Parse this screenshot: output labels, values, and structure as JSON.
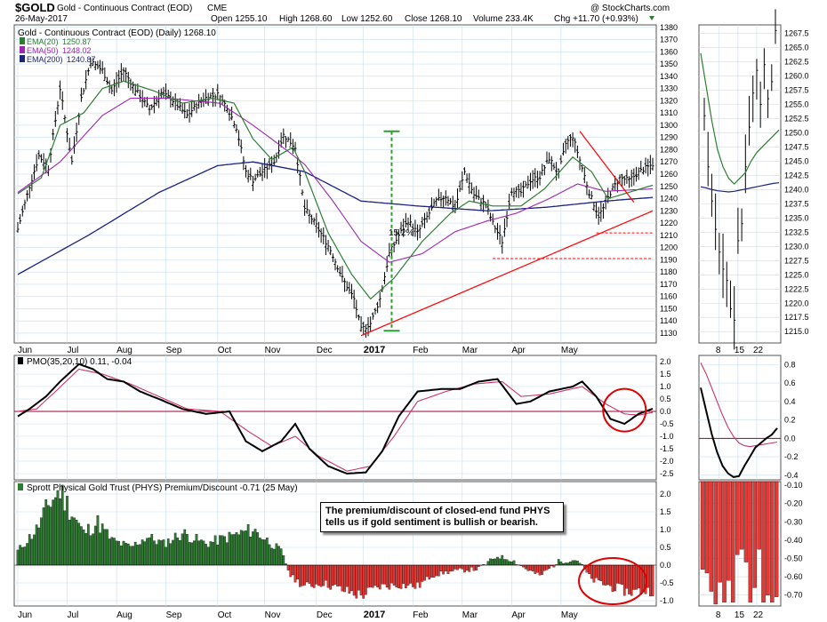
{
  "header": {
    "symbol": "$GOLD",
    "name": "Gold - Continuous Contract (EOD)",
    "exchange": "CME",
    "date": "26-May-2017",
    "open": "Open 1255.10",
    "high": "High 1268.60",
    "low": "Low 1252.60",
    "close": "Close 1268.10",
    "volume": "Volume 233.4K",
    "chg": "Chg +11.70 (+0.93%)",
    "credit": "@ StockCharts.com"
  },
  "colors": {
    "price": "#000000",
    "ema20": "#2e7d32",
    "ema50": "#9c27b0",
    "ema200": "#1a237e",
    "trend": "#ff0000",
    "pmo": "#000000",
    "pmo_signal": "#cc3366",
    "premium_pos": "#2e7d32",
    "premium_neg": "#e53935",
    "grid": "#c8dcf0"
  },
  "annotation": {
    "line1": "The premium/discount of closed-end fund PHYS",
    "line2": "tells us if gold sentiment is bullish or bearish.",
    "rally_pct": "15.2%"
  },
  "chart_data": [
    {
      "type": "line",
      "panel": "price-daily",
      "title": "Gold - Continuous Contract (EOD) (Daily) 1268.10",
      "legend": [
        {
          "label": "Gold - Continuous Contract (EOD) (Daily) 1268.10"
        },
        {
          "label": "EMA(20)",
          "value": "1250.87"
        },
        {
          "label": "EMA(50)",
          "value": "1248.02"
        },
        {
          "label": "EMA(200)",
          "value": "1240.87"
        }
      ],
      "ylim": [
        1122,
        1382
      ],
      "yticks": [
        1130,
        1140,
        1150,
        1160,
        1170,
        1180,
        1190,
        1200,
        1210,
        1220,
        1230,
        1240,
        1250,
        1260,
        1270,
        1280,
        1290,
        1300,
        1310,
        1320,
        1330,
        1340,
        1350,
        1360,
        1370,
        1380
      ],
      "xticks": [
        "Jun",
        "Jul",
        "Aug",
        "Sep",
        "Oct",
        "Nov",
        "Dec",
        "2017",
        "Feb",
        "Mar",
        "Apr",
        "May"
      ],
      "x_tick_pos": [
        0,
        21,
        42,
        63,
        85,
        105,
        127,
        147,
        168,
        189,
        210,
        231
      ],
      "n": 252,
      "anchors": [
        [
          0,
          1215
        ],
        [
          5,
          1250
        ],
        [
          9,
          1275
        ],
        [
          13,
          1265
        ],
        [
          18,
          1330
        ],
        [
          23,
          1270
        ],
        [
          27,
          1322
        ],
        [
          31,
          1352
        ],
        [
          36,
          1345
        ],
        [
          40,
          1328
        ],
        [
          45,
          1345
        ],
        [
          49,
          1332
        ],
        [
          56,
          1313
        ],
        [
          61,
          1326
        ],
        [
          65,
          1322
        ],
        [
          72,
          1308
        ],
        [
          79,
          1322
        ],
        [
          85,
          1325
        ],
        [
          89,
          1315
        ],
        [
          93,
          1298
        ],
        [
          97,
          1262
        ],
        [
          100,
          1255
        ],
        [
          104,
          1262
        ],
        [
          109,
          1270
        ],
        [
          113,
          1292
        ],
        [
          118,
          1282
        ],
        [
          122,
          1232
        ],
        [
          127,
          1218
        ],
        [
          133,
          1198
        ],
        [
          138,
          1175
        ],
        [
          143,
          1158
        ],
        [
          146,
          1133
        ],
        [
          150,
          1138
        ],
        [
          154,
          1158
        ],
        [
          158,
          1195
        ],
        [
          162,
          1210
        ],
        [
          166,
          1222
        ],
        [
          170,
          1212
        ],
        [
          174,
          1225
        ],
        [
          178,
          1238
        ],
        [
          182,
          1242
        ],
        [
          186,
          1232
        ],
        [
          190,
          1262
        ],
        [
          194,
          1243
        ],
        [
          199,
          1235
        ],
        [
          202,
          1220
        ],
        [
          206,
          1205
        ],
        [
          210,
          1247
        ],
        [
          214,
          1245
        ],
        [
          218,
          1255
        ],
        [
          222,
          1258
        ],
        [
          226,
          1273
        ],
        [
          230,
          1260
        ],
        [
          233,
          1285
        ],
        [
          236,
          1291
        ],
        [
          240,
          1265
        ],
        [
          243,
          1245
        ],
        [
          247,
          1226
        ],
        [
          249,
          1232
        ],
        [
          252,
          1245
        ],
        [
          256,
          1257
        ],
        [
          260,
          1255
        ],
        [
          263,
          1260
        ],
        [
          266,
          1264
        ],
        [
          270,
          1268
        ]
      ],
      "ema20_anchors": [
        [
          0,
          1244
        ],
        [
          10,
          1257
        ],
        [
          18,
          1300
        ],
        [
          28,
          1310
        ],
        [
          36,
          1330
        ],
        [
          45,
          1336
        ],
        [
          58,
          1328
        ],
        [
          70,
          1318
        ],
        [
          83,
          1322
        ],
        [
          92,
          1318
        ],
        [
          100,
          1289
        ],
        [
          108,
          1272
        ],
        [
          117,
          1282
        ],
        [
          122,
          1262
        ],
        [
          132,
          1212
        ],
        [
          142,
          1178
        ],
        [
          150,
          1158
        ],
        [
          160,
          1175
        ],
        [
          172,
          1205
        ],
        [
          184,
          1228
        ],
        [
          192,
          1238
        ],
        [
          202,
          1234
        ],
        [
          214,
          1234
        ],
        [
          224,
          1248
        ],
        [
          236,
          1274
        ],
        [
          244,
          1262
        ],
        [
          251,
          1240
        ],
        [
          258,
          1244
        ],
        [
          270,
          1251
        ]
      ],
      "ema50_anchors": [
        [
          0,
          1245
        ],
        [
          18,
          1270
        ],
        [
          36,
          1308
        ],
        [
          48,
          1322
        ],
        [
          64,
          1322
        ],
        [
          86,
          1318
        ],
        [
          100,
          1300
        ],
        [
          112,
          1283
        ],
        [
          122,
          1268
        ],
        [
          134,
          1238
        ],
        [
          146,
          1205
        ],
        [
          158,
          1188
        ],
        [
          172,
          1195
        ],
        [
          186,
          1213
        ],
        [
          200,
          1222
        ],
        [
          212,
          1228
        ],
        [
          226,
          1240
        ],
        [
          238,
          1252
        ],
        [
          250,
          1246
        ],
        [
          270,
          1248
        ]
      ],
      "ema200_anchors": [
        [
          0,
          1178
        ],
        [
          30,
          1210
        ],
        [
          60,
          1245
        ],
        [
          85,
          1267
        ],
        [
          100,
          1270
        ],
        [
          122,
          1262
        ],
        [
          146,
          1238
        ],
        [
          170,
          1234
        ],
        [
          200,
          1230
        ],
        [
          225,
          1233
        ],
        [
          250,
          1238
        ],
        [
          270,
          1241
        ]
      ],
      "trend_lines": [
        {
          "from": [
            146,
            1128
          ],
          "to": [
            270,
            1230
          ]
        },
        {
          "from": [
            239,
            1295
          ],
          "to": [
            262,
            1237
          ]
        }
      ],
      "support_lines": [
        {
          "from": [
            202,
            1191
          ],
          "to": [
            270,
            1191
          ]
        },
        {
          "from": [
            246,
            1212
          ],
          "to": [
            270,
            1212
          ]
        }
      ],
      "rally_marker": {
        "x": 159,
        "low": 1132,
        "high": 1295,
        "label": "15.2%"
      }
    },
    {
      "type": "line",
      "panel": "price-weekly-zoom",
      "ylim": [
        1213,
        1269
      ],
      "yticks": [
        1215.0,
        1217.5,
        1220.0,
        1222.5,
        1225.0,
        1227.5,
        1230.0,
        1232.5,
        1235.0,
        1237.5,
        1240.0,
        1242.5,
        1245.0,
        1247.5,
        1250.0,
        1252.5,
        1255.0,
        1257.5,
        1260.0,
        1262.5,
        1265.0,
        1267.5
      ],
      "xticks": [
        "8",
        "15",
        "22"
      ],
      "x_tick_pos": [
        4,
        9,
        14
      ],
      "closes": [
        1253,
        1244,
        1238,
        1233,
        1229,
        1226,
        1224,
        1219,
        1217,
        1231,
        1234,
        1244,
        1251,
        1257,
        1261,
        1255,
        1262,
        1256,
        1259,
        1268
      ],
      "ema20": [
        1264,
        1258,
        1252,
        1247,
        1244,
        1242,
        1241,
        1242,
        1243,
        1245,
        1246.5,
        1247.5,
        1248.5,
        1249.5,
        1250.5
      ],
      "ema200": [
        1240.5,
        1240.3,
        1240.0,
        1239.8,
        1239.7,
        1239.6,
        1239.7,
        1239.9,
        1240.1,
        1240.3,
        1240.5,
        1240.7,
        1240.9,
        1241.1,
        1241.2
      ]
    },
    {
      "type": "line",
      "panel": "pmo",
      "title": "PMO(35,20,10) 0.11, -0.04",
      "ylim": [
        -2.75,
        2.25
      ],
      "yticks": [
        -2.5,
        -2.0,
        -1.5,
        -1.0,
        -0.5,
        0.0,
        0.5,
        1.0,
        1.5,
        2.0
      ],
      "pmo_anchors": [
        [
          0,
          -0.2
        ],
        [
          5,
          0.1
        ],
        [
          12,
          0.6
        ],
        [
          18,
          1.2
        ],
        [
          26,
          1.9
        ],
        [
          32,
          1.7
        ],
        [
          38,
          1.3
        ],
        [
          45,
          1.2
        ],
        [
          52,
          0.8
        ],
        [
          60,
          0.5
        ],
        [
          70,
          0.1
        ],
        [
          80,
          -0.1
        ],
        [
          90,
          0.0
        ],
        [
          97,
          -1.2
        ],
        [
          104,
          -1.6
        ],
        [
          112,
          -1.2
        ],
        [
          118,
          -0.5
        ],
        [
          124,
          -1.5
        ],
        [
          132,
          -2.2
        ],
        [
          140,
          -2.5
        ],
        [
          148,
          -2.45
        ],
        [
          155,
          -1.6
        ],
        [
          162,
          -0.2
        ],
        [
          170,
          0.8
        ],
        [
          180,
          0.9
        ],
        [
          188,
          0.9
        ],
        [
          196,
          1.2
        ],
        [
          204,
          1.3
        ],
        [
          212,
          0.3
        ],
        [
          218,
          0.4
        ],
        [
          226,
          0.8
        ],
        [
          236,
          1.0
        ],
        [
          240,
          1.2
        ],
        [
          246,
          0.6
        ],
        [
          252,
          -0.3
        ],
        [
          258,
          -0.5
        ],
        [
          264,
          -0.1
        ],
        [
          270,
          0.11
        ]
      ],
      "signal_anchors": [
        [
          0,
          0.0
        ],
        [
          8,
          0.1
        ],
        [
          16,
          0.8
        ],
        [
          26,
          1.7
        ],
        [
          36,
          1.5
        ],
        [
          48,
          1.1
        ],
        [
          60,
          0.6
        ],
        [
          72,
          0.1
        ],
        [
          86,
          0.0
        ],
        [
          98,
          -0.8
        ],
        [
          108,
          -1.4
        ],
        [
          118,
          -1.0
        ],
        [
          128,
          -1.8
        ],
        [
          140,
          -2.4
        ],
        [
          150,
          -2.2
        ],
        [
          160,
          -1.0
        ],
        [
          170,
          0.4
        ],
        [
          182,
          0.8
        ],
        [
          194,
          1.1
        ],
        [
          206,
          1.2
        ],
        [
          214,
          0.6
        ],
        [
          226,
          0.7
        ],
        [
          240,
          1.0
        ],
        [
          250,
          0.3
        ],
        [
          258,
          -0.1
        ],
        [
          264,
          -0.15
        ],
        [
          270,
          -0.04
        ]
      ],
      "zoom": {
        "ylim": [
          -0.45,
          0.9
        ],
        "yticks": [
          -0.4,
          -0.2,
          0.0,
          0.2,
          0.4,
          0.6,
          0.8
        ],
        "pmo": [
          0.55,
          0.3,
          0.05,
          -0.15,
          -0.3,
          -0.38,
          -0.42,
          -0.41,
          -0.3,
          -0.2,
          -0.1,
          -0.05,
          0.0,
          0.04,
          0.11
        ],
        "signal": [
          0.82,
          0.7,
          0.55,
          0.4,
          0.25,
          0.12,
          0.02,
          -0.05,
          -0.08,
          -0.09,
          -0.08,
          -0.07,
          -0.06,
          -0.05,
          -0.04
        ]
      }
    },
    {
      "type": "bar",
      "panel": "premium-discount",
      "title": "Sprott Physical Gold Trust (PHYS) Premium/Discount -0.71 (25 May)",
      "ylim": [
        -1.15,
        2.35
      ],
      "yticks": [
        -1.0,
        -0.5,
        0.0,
        0.5,
        1.0,
        1.5,
        2.0
      ],
      "anchors": [
        [
          0,
          0.4
        ],
        [
          8,
          1.0
        ],
        [
          14,
          1.8
        ],
        [
          18,
          2.1
        ],
        [
          22,
          1.6
        ],
        [
          28,
          0.9
        ],
        [
          34,
          1.2
        ],
        [
          40,
          0.7
        ],
        [
          48,
          0.5
        ],
        [
          55,
          0.8
        ],
        [
          62,
          0.6
        ],
        [
          70,
          0.9
        ],
        [
          80,
          0.6
        ],
        [
          90,
          0.8
        ],
        [
          100,
          1.0
        ],
        [
          106,
          0.7
        ],
        [
          112,
          0.4
        ],
        [
          116,
          -0.3
        ],
        [
          122,
          -0.6
        ],
        [
          130,
          -0.5
        ],
        [
          138,
          -0.7
        ],
        [
          146,
          -0.85
        ],
        [
          154,
          -0.6
        ],
        [
          162,
          -0.55
        ],
        [
          170,
          -0.6
        ],
        [
          176,
          -0.3
        ],
        [
          182,
          -0.2
        ],
        [
          188,
          -0.15
        ],
        [
          196,
          -0.1
        ],
        [
          204,
          0.25
        ],
        [
          210,
          0.15
        ],
        [
          216,
          -0.1
        ],
        [
          222,
          -0.3
        ],
        [
          230,
          0.1
        ],
        [
          238,
          0.15
        ],
        [
          244,
          -0.4
        ],
        [
          252,
          -0.6
        ],
        [
          260,
          -0.75
        ],
        [
          270,
          -0.71
        ]
      ],
      "zoom": {
        "ylim": [
          -0.76,
          -0.08
        ],
        "yticks": [
          -0.1,
          -0.2,
          -0.3,
          -0.4,
          -0.5,
          -0.6,
          -0.7
        ],
        "values": [
          -0.56,
          -0.58,
          -0.68,
          -0.75,
          -0.63,
          -0.74,
          -0.62,
          -0.74,
          -0.48,
          -0.45,
          -0.52,
          -0.74,
          -0.66,
          -0.45,
          -0.74,
          -0.7,
          -0.74,
          -0.71
        ]
      }
    }
  ]
}
